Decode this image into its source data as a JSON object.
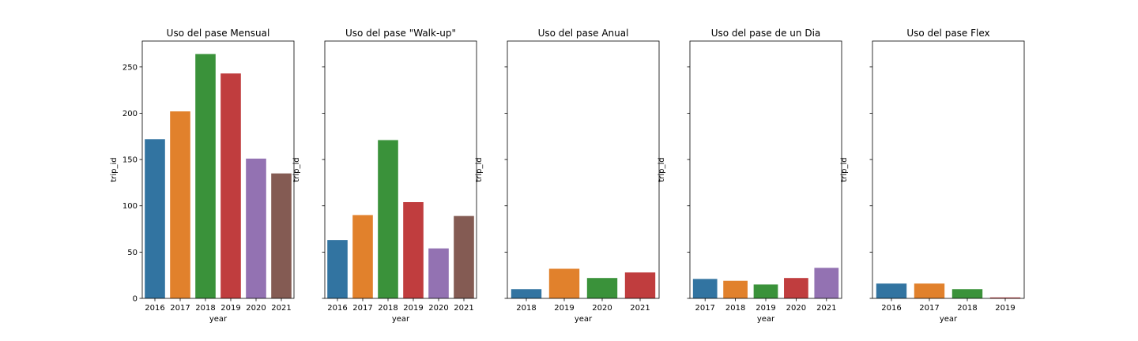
{
  "chart_data": [
    {
      "type": "bar",
      "title": "Uso del pase Mensual",
      "xlabel": "year",
      "ylabel": "trip_id",
      "categories": [
        "2016",
        "2017",
        "2018",
        "2019",
        "2020",
        "2021"
      ],
      "values": [
        172,
        202,
        264,
        243,
        151,
        135
      ],
      "colors": [
        "#3274a1",
        "#e1812c",
        "#3a923a",
        "#c03d3e",
        "#9372b2",
        "#845b53"
      ],
      "ylim": [
        0,
        278
      ],
      "yticks": [
        0,
        50,
        100,
        150,
        200,
        250
      ],
      "show_ytick_labels": true
    },
    {
      "type": "bar",
      "title": "Uso del pase \"Walk-up\"",
      "xlabel": "year",
      "ylabel": "trip_id",
      "categories": [
        "2016",
        "2017",
        "2018",
        "2019",
        "2020",
        "2021"
      ],
      "values": [
        63,
        90,
        171,
        104,
        54,
        89
      ],
      "colors": [
        "#3274a1",
        "#e1812c",
        "#3a923a",
        "#c03d3e",
        "#9372b2",
        "#845b53"
      ],
      "ylim": [
        0,
        278
      ],
      "yticks": [
        0,
        50,
        100,
        150,
        200,
        250
      ],
      "show_ytick_labels": false
    },
    {
      "type": "bar",
      "title": "Uso del pase Anual",
      "xlabel": "year",
      "ylabel": "trip_id",
      "categories": [
        "2018",
        "2019",
        "2020",
        "2021"
      ],
      "values": [
        10,
        32,
        22,
        28
      ],
      "colors": [
        "#3274a1",
        "#e1812c",
        "#3a923a",
        "#c03d3e"
      ],
      "ylim": [
        0,
        278
      ],
      "yticks": [
        0,
        50,
        100,
        150,
        200,
        250
      ],
      "show_ytick_labels": false
    },
    {
      "type": "bar",
      "title": "Uso del pase de un Dia",
      "xlabel": "year",
      "ylabel": "trip_id",
      "categories": [
        "2017",
        "2018",
        "2019",
        "2020",
        "2021"
      ],
      "values": [
        21,
        19,
        15,
        22,
        33
      ],
      "colors": [
        "#3274a1",
        "#e1812c",
        "#3a923a",
        "#c03d3e",
        "#9372b2"
      ],
      "ylim": [
        0,
        278
      ],
      "yticks": [
        0,
        50,
        100,
        150,
        200,
        250
      ],
      "show_ytick_labels": false
    },
    {
      "type": "bar",
      "title": "Uso del pase Flex",
      "xlabel": "year",
      "ylabel": "trip_id",
      "categories": [
        "2016",
        "2017",
        "2018",
        "2019"
      ],
      "values": [
        16,
        16,
        10,
        1
      ],
      "colors": [
        "#3274a1",
        "#e1812c",
        "#3a923a",
        "#c03d3e"
      ],
      "ylim": [
        0,
        278
      ],
      "yticks": [
        0,
        50,
        100,
        150,
        200,
        250
      ],
      "show_ytick_labels": false
    }
  ]
}
